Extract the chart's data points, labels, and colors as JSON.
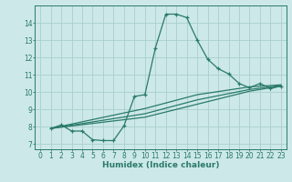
{
  "xlabel": "Humidex (Indice chaleur)",
  "ylabel": "",
  "bg_color": "#cce8e8",
  "grid_color": "#aacece",
  "line_color": "#2a7a6a",
  "xlim": [
    -0.5,
    23.5
  ],
  "ylim": [
    6.7,
    15.0
  ],
  "xticks": [
    0,
    1,
    2,
    3,
    4,
    5,
    6,
    7,
    8,
    9,
    10,
    11,
    12,
    13,
    14,
    15,
    16,
    17,
    18,
    19,
    20,
    21,
    22,
    23
  ],
  "yticks": [
    7,
    8,
    9,
    10,
    11,
    12,
    13,
    14
  ],
  "curve1_x": [
    1,
    2,
    3,
    4,
    5,
    6,
    7,
    8,
    9,
    10,
    11,
    12,
    13,
    14,
    15,
    16,
    17,
    18,
    19,
    20,
    21,
    22,
    23
  ],
  "curve1_y": [
    7.9,
    8.1,
    7.75,
    7.75,
    7.25,
    7.2,
    7.2,
    8.05,
    9.75,
    9.85,
    12.55,
    14.5,
    14.5,
    14.3,
    13.0,
    11.9,
    11.35,
    11.05,
    10.5,
    10.25,
    10.5,
    10.2,
    10.35
  ],
  "curve2_x": [
    1,
    10,
    15,
    20,
    23
  ],
  "curve2_y": [
    7.9,
    8.55,
    9.3,
    10.05,
    10.35
  ],
  "curve3_x": [
    1,
    10,
    15,
    20,
    23
  ],
  "curve3_y": [
    7.9,
    8.75,
    9.55,
    10.15,
    10.38
  ],
  "curve4_x": [
    1,
    10,
    15,
    20,
    23
  ],
  "curve4_y": [
    7.9,
    9.05,
    9.85,
    10.3,
    10.42
  ]
}
